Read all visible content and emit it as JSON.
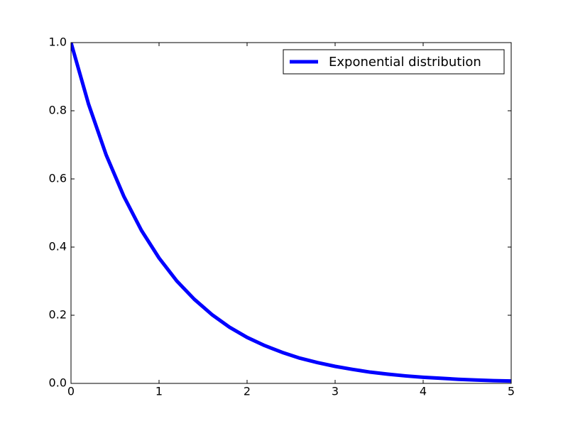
{
  "chart_data": {
    "type": "line",
    "x": [
      0,
      0.2,
      0.4,
      0.6,
      0.8,
      1.0,
      1.2,
      1.4,
      1.6,
      1.8,
      2.0,
      2.2,
      2.4,
      2.6,
      2.8,
      3.0,
      3.2,
      3.4,
      3.6,
      3.8,
      4.0,
      4.2,
      4.4,
      4.6,
      4.8,
      5.0
    ],
    "series": [
      {
        "name": "Exponential distribution",
        "color": "#0000ff",
        "values": [
          1,
          0.819,
          0.67,
          0.549,
          0.449,
          0.368,
          0.301,
          0.247,
          0.202,
          0.165,
          0.135,
          0.111,
          0.091,
          0.074,
          0.061,
          0.05,
          0.041,
          0.033,
          0.027,
          0.022,
          0.018,
          0.015,
          0.012,
          0.01,
          0.008,
          0.007
        ]
      }
    ],
    "xlim": [
      0,
      5
    ],
    "xticks": [
      0,
      1,
      2,
      3,
      4,
      5
    ],
    "ylim": [
      0,
      1
    ],
    "yticks": [
      {
        "value": 0,
        "label": "0.0"
      },
      0.2,
      0.4,
      0.6,
      0.8,
      {
        "value": 1,
        "label": "1.0"
      }
    ],
    "grid": false,
    "legend": "upper right"
  }
}
